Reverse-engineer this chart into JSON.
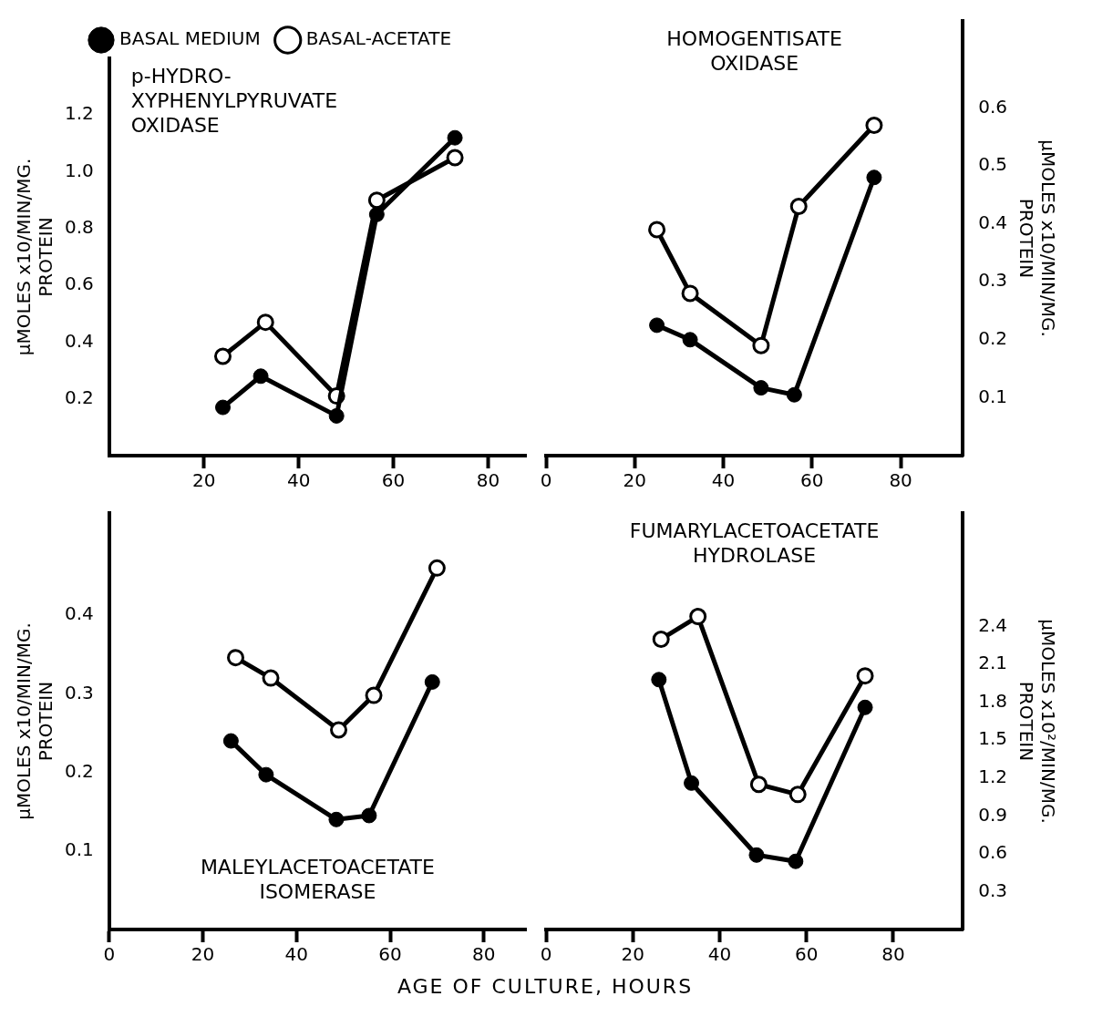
{
  "chart_data": [
    {
      "type": "line",
      "title": "p-HYDRO-\nXYPHENYLPYRUVATE\nOXIDASE",
      "ylabel": "μMOLES x10/MIN/MG.\nPROTEIN",
      "legend": "top",
      "marker": "circle",
      "grid": false,
      "xlim": [
        0,
        88
      ],
      "xticks": [
        20,
        40,
        60,
        80
      ],
      "ylim": [
        0,
        1.4
      ],
      "yticks": [
        0.2,
        0.4,
        0.6,
        0.8,
        {
          "value": 1.0,
          "label": "1.0"
        },
        1.2
      ],
      "series": [
        {
          "name": "BASAL MEDIUM",
          "color": "#000000",
          "x": [
            24,
            32,
            48,
            56.5,
            73
          ],
          "values": [
            0.17,
            0.28,
            0.14,
            0.85,
            1.12
          ]
        },
        {
          "name": "BASAL-ACETATE",
          "color": "#000000",
          "x": [
            24,
            33,
            48,
            56.5,
            73
          ],
          "values": [
            0.35,
            0.47,
            0.21,
            0.9,
            1.05
          ]
        }
      ]
    },
    {
      "type": "line",
      "title": "HOMOGENTISATE\nOXIDASE",
      "y2label": "μMOLES x10/MIN/MG.\nPROTEIN",
      "marker": "circle",
      "grid": false,
      "xlim": [
        0,
        94
      ],
      "xticks": [
        0,
        20,
        40,
        60,
        80
      ],
      "y2lim": [
        0,
        0.75
      ],
      "y2ticks": [
        0.1,
        0.2,
        0.3,
        0.4,
        0.5,
        0.6
      ],
      "series": [
        {
          "color": "#000000",
          "axis": "y2",
          "x": [
            25,
            32.5,
            48.5,
            56,
            74
          ],
          "values": [
            0.225,
            0.2,
            0.117,
            0.105,
            0.48
          ]
        },
        {
          "color": "#000000",
          "axis": "y2",
          "x": [
            25,
            32.5,
            48.5,
            57,
            74
          ],
          "values": [
            0.39,
            0.28,
            0.19,
            0.43,
            0.57
          ]
        }
      ]
    },
    {
      "type": "line",
      "title": "MALEYLACETOACETATE\nISOMERASE",
      "ylabel": "μMOLES x10/MIN/MG.\nPROTEIN",
      "xlabel": "AGE OF CULTURE, HOURS",
      "marker": "circle",
      "grid": false,
      "xlim": [
        0,
        89
      ],
      "xticks": [
        0,
        20,
        40,
        60,
        80
      ],
      "ylim": [
        0,
        0.53
      ],
      "yticks": [
        0.1,
        0.2,
        0.3,
        0.4
      ],
      "series": [
        {
          "color": "#000000",
          "x": [
            26,
            33.5,
            48.5,
            55.5,
            69
          ],
          "values": [
            0.24,
            0.197,
            0.14,
            0.145,
            0.315
          ]
        },
        {
          "color": "#000000",
          "x": [
            27,
            34.5,
            49,
            56.5,
            70
          ],
          "values": [
            0.346,
            0.32,
            0.254,
            0.298,
            0.46
          ]
        }
      ]
    },
    {
      "type": "line",
      "title": "FUMARYLACETOACETATE\nHYDROLASE",
      "y2label": "μMOLES x10²/MIN/MG.\nPROTEIN",
      "marker": "circle",
      "grid": false,
      "xlim": [
        0,
        96
      ],
      "xticks": [
        0,
        20,
        40,
        60,
        80
      ],
      "y2lim": [
        0,
        3.3
      ],
      "y2ticks": [
        0.3,
        0.6,
        0.9,
        1.2,
        1.5,
        1.8,
        2.1,
        2.4
      ],
      "series": [
        {
          "color": "#000000",
          "axis": "y2",
          "x": [
            26,
            33.5,
            48.5,
            57.5,
            73.5
          ],
          "values": [
            1.98,
            1.16,
            0.59,
            0.54,
            1.76
          ]
        },
        {
          "color": "#000000",
          "axis": "y2",
          "x": [
            26.5,
            35,
            49,
            58,
            73.5
          ],
          "values": [
            2.3,
            2.48,
            1.15,
            1.07,
            2.01
          ]
        }
      ]
    }
  ]
}
